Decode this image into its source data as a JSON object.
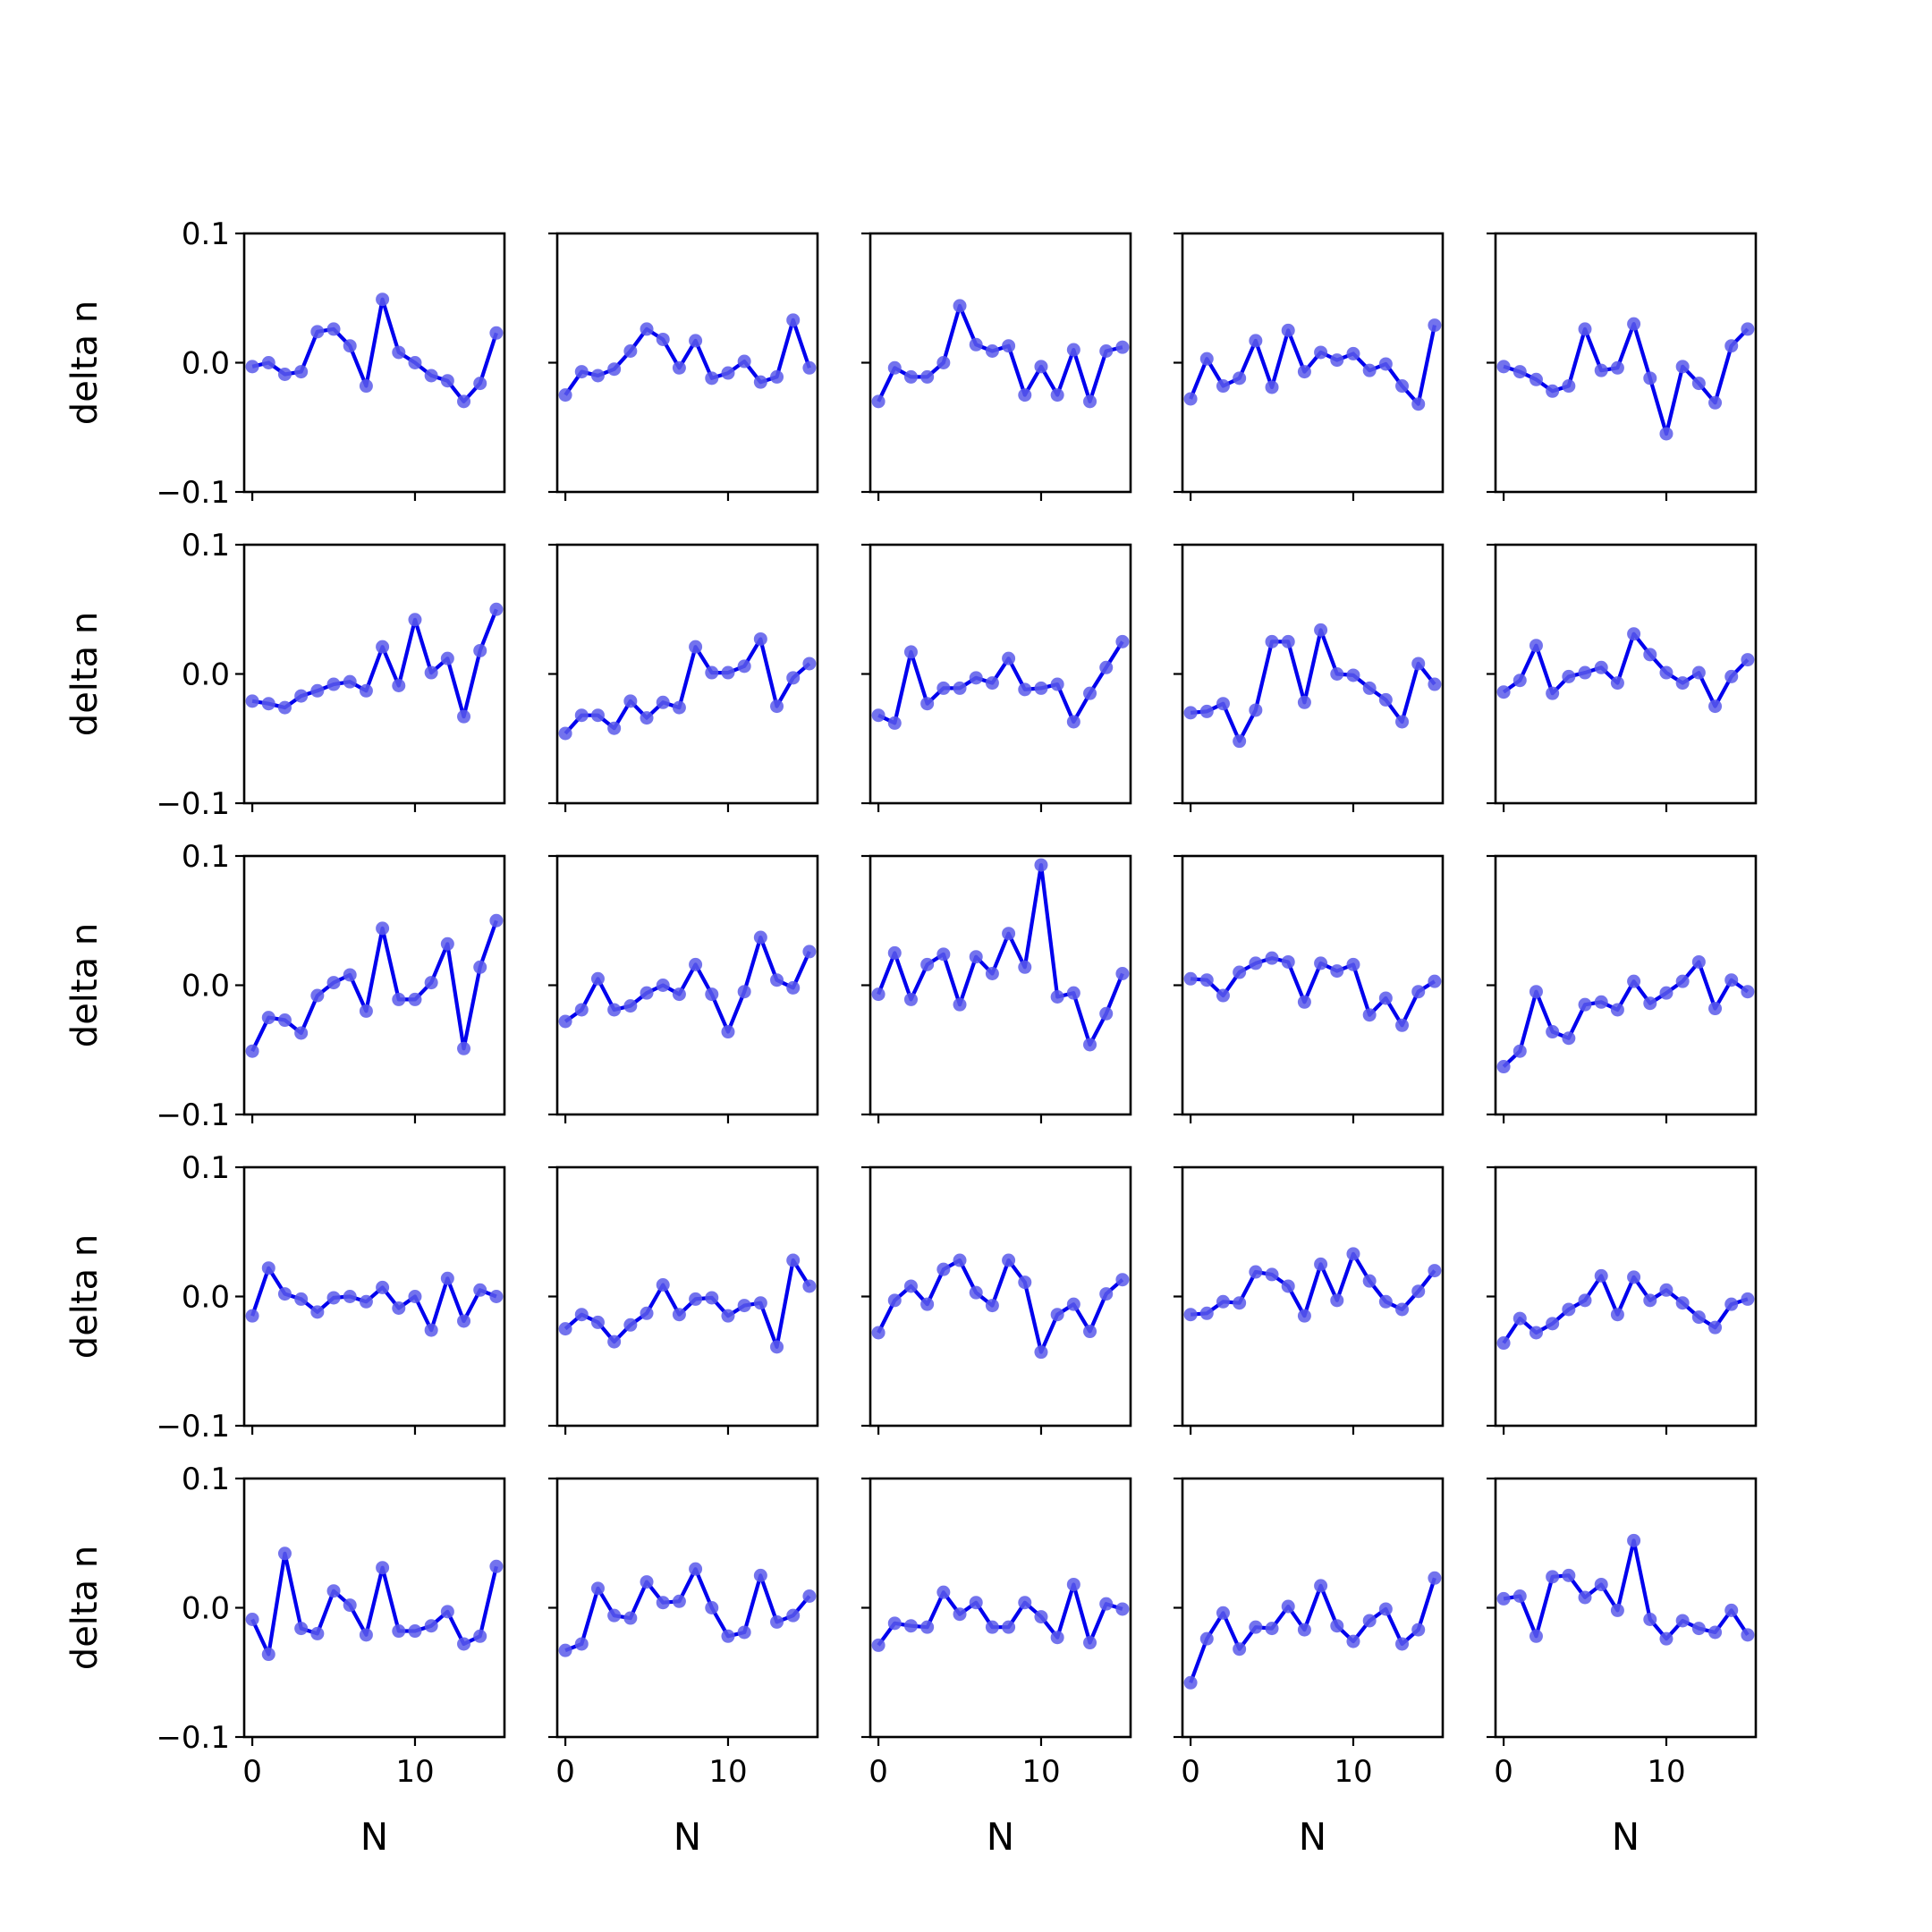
{
  "figure": {
    "x_tick_labels": [
      "0",
      "10"
    ],
    "y_tick_labels": [
      "0.1",
      "0.0",
      "−0.1"
    ],
    "x_label": "N",
    "y_label": "delta n",
    "line_color": "#0000ee",
    "marker_color": "#5a5aea"
  },
  "chart_data": {
    "type": "line",
    "layout": "5x5 grid of small multiples, shared axes",
    "xlabel": "N",
    "ylabel": "delta n",
    "xlim": [
      -0.5,
      15.5
    ],
    "ylim": [
      -0.1,
      0.1
    ],
    "x": [
      0,
      1,
      2,
      3,
      4,
      5,
      6,
      7,
      8,
      9,
      10,
      11,
      12,
      13,
      14,
      15
    ],
    "xticks": [
      0,
      10
    ],
    "yticks": [
      0.1,
      0.0,
      -0.1
    ],
    "panels": [
      [
        -0.003,
        0.0,
        -0.009,
        -0.007,
        0.024,
        0.026,
        0.013,
        -0.018,
        0.049,
        0.008,
        0.0,
        -0.01,
        -0.014,
        -0.03,
        -0.016,
        0.023
      ],
      [
        -0.025,
        -0.007,
        -0.01,
        -0.005,
        0.009,
        0.026,
        0.018,
        -0.004,
        0.017,
        -0.012,
        -0.008,
        0.001,
        -0.015,
        -0.011,
        0.033,
        -0.004
      ],
      [
        -0.03,
        -0.004,
        -0.011,
        -0.011,
        0.0,
        0.044,
        0.014,
        0.009,
        0.013,
        -0.025,
        -0.003,
        -0.025,
        0.01,
        -0.03,
        0.009,
        0.012
      ],
      [
        -0.028,
        0.003,
        -0.018,
        -0.012,
        0.017,
        -0.019,
        0.025,
        -0.007,
        0.008,
        0.002,
        0.007,
        -0.006,
        -0.001,
        -0.018,
        -0.032,
        0.029
      ],
      [
        -0.003,
        -0.007,
        -0.013,
        -0.022,
        -0.018,
        0.026,
        -0.006,
        -0.004,
        0.03,
        -0.012,
        -0.055,
        -0.003,
        -0.016,
        -0.031,
        0.013,
        0.026
      ],
      [
        -0.021,
        -0.023,
        -0.026,
        -0.017,
        -0.013,
        -0.008,
        -0.006,
        -0.013,
        0.021,
        -0.009,
        0.042,
        0.001,
        0.012,
        -0.033,
        0.018,
        0.05
      ],
      [
        -0.046,
        -0.032,
        -0.032,
        -0.042,
        -0.021,
        -0.034,
        -0.022,
        -0.026,
        0.021,
        0.001,
        0.001,
        0.006,
        0.027,
        -0.025,
        -0.003,
        0.008
      ],
      [
        -0.032,
        -0.038,
        0.017,
        -0.023,
        -0.011,
        -0.011,
        -0.003,
        -0.007,
        0.012,
        -0.012,
        -0.011,
        -0.008,
        -0.037,
        -0.015,
        0.005,
        0.025
      ],
      [
        -0.03,
        -0.029,
        -0.023,
        -0.052,
        -0.028,
        0.025,
        0.025,
        -0.022,
        0.034,
        0.0,
        -0.001,
        -0.011,
        -0.02,
        -0.037,
        0.008,
        -0.008
      ],
      [
        -0.014,
        -0.005,
        0.022,
        -0.015,
        -0.002,
        0.001,
        0.005,
        -0.007,
        0.031,
        0.015,
        0.001,
        -0.007,
        0.001,
        -0.025,
        -0.002,
        0.011
      ],
      [
        -0.051,
        -0.025,
        -0.027,
        -0.037,
        -0.008,
        0.002,
        0.008,
        -0.02,
        0.044,
        -0.011,
        -0.011,
        0.002,
        0.032,
        -0.049,
        0.014,
        0.05
      ],
      [
        -0.028,
        -0.019,
        0.005,
        -0.019,
        -0.016,
        -0.006,
        0.0,
        -0.007,
        0.016,
        -0.007,
        -0.036,
        -0.005,
        0.037,
        0.004,
        -0.002,
        0.026
      ],
      [
        -0.007,
        0.025,
        -0.011,
        0.016,
        0.024,
        -0.015,
        0.022,
        0.009,
        0.04,
        0.014,
        0.093,
        -0.009,
        -0.006,
        -0.046,
        -0.022,
        0.009
      ],
      [
        0.005,
        0.004,
        -0.008,
        0.01,
        0.017,
        0.021,
        0.018,
        -0.013,
        0.017,
        0.011,
        0.016,
        -0.023,
        -0.01,
        -0.031,
        -0.005,
        0.003
      ],
      [
        -0.063,
        -0.051,
        -0.005,
        -0.036,
        -0.041,
        -0.015,
        -0.013,
        -0.019,
        0.003,
        -0.014,
        -0.006,
        0.003,
        0.018,
        -0.018,
        0.004,
        -0.005
      ],
      [
        -0.015,
        0.022,
        0.002,
        -0.002,
        -0.012,
        -0.001,
        0.0,
        -0.004,
        0.007,
        -0.009,
        0.0,
        -0.026,
        0.014,
        -0.019,
        0.005,
        0.0
      ],
      [
        -0.025,
        -0.014,
        -0.02,
        -0.035,
        -0.022,
        -0.013,
        0.009,
        -0.014,
        -0.002,
        -0.001,
        -0.015,
        -0.007,
        -0.005,
        -0.039,
        0.028,
        0.008
      ],
      [
        -0.028,
        -0.003,
        0.008,
        -0.006,
        0.021,
        0.028,
        0.003,
        -0.007,
        0.028,
        0.011,
        -0.043,
        -0.014,
        -0.006,
        -0.027,
        0.002,
        0.013
      ],
      [
        -0.014,
        -0.013,
        -0.004,
        -0.005,
        0.019,
        0.017,
        0.008,
        -0.015,
        0.025,
        -0.003,
        0.033,
        0.012,
        -0.004,
        -0.01,
        0.004,
        0.02
      ],
      [
        -0.036,
        -0.017,
        -0.028,
        -0.021,
        -0.01,
        -0.003,
        0.016,
        -0.014,
        0.015,
        -0.003,
        0.005,
        -0.005,
        -0.016,
        -0.024,
        -0.006,
        -0.002
      ],
      [
        -0.009,
        -0.036,
        0.042,
        -0.016,
        -0.02,
        0.013,
        0.002,
        -0.021,
        0.031,
        -0.018,
        -0.018,
        -0.014,
        -0.003,
        -0.028,
        -0.022,
        0.032
      ],
      [
        -0.033,
        -0.028,
        0.015,
        -0.006,
        -0.008,
        0.02,
        0.004,
        0.005,
        0.03,
        0.0,
        -0.022,
        -0.019,
        0.025,
        -0.011,
        -0.006,
        0.009
      ],
      [
        -0.029,
        -0.012,
        -0.014,
        -0.015,
        0.012,
        -0.005,
        0.004,
        -0.015,
        -0.015,
        0.004,
        -0.007,
        -0.023,
        0.018,
        -0.027,
        0.003,
        -0.001
      ],
      [
        -0.058,
        -0.024,
        -0.004,
        -0.032,
        -0.015,
        -0.016,
        0.001,
        -0.017,
        0.017,
        -0.014,
        -0.026,
        -0.01,
        -0.001,
        -0.028,
        -0.017,
        0.023
      ],
      [
        0.007,
        0.009,
        -0.022,
        0.024,
        0.025,
        0.008,
        0.018,
        -0.002,
        0.052,
        -0.009,
        -0.024,
        -0.01,
        -0.016,
        -0.019,
        -0.002,
        -0.021
      ]
    ]
  }
}
